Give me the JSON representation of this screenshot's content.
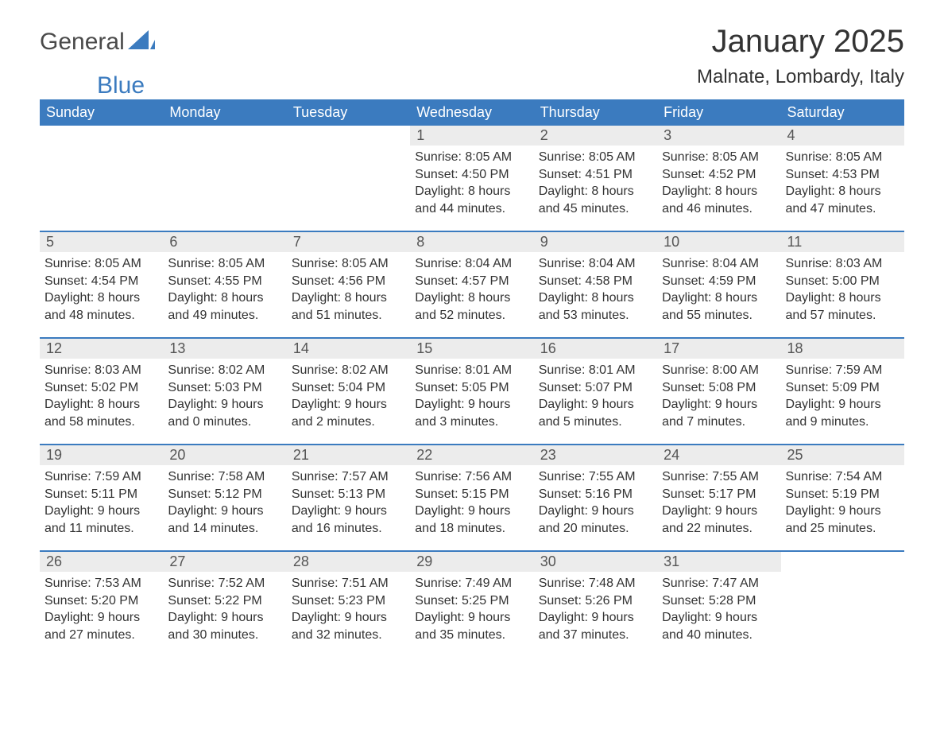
{
  "logo": {
    "text1": "General",
    "text2": "Blue"
  },
  "title": "January 2025",
  "subtitle": "Malnate, Lombardy, Italy",
  "colors": {
    "header_bg": "#3b7bbf",
    "header_text": "#ffffff",
    "daynum_bg": "#ececec",
    "daynum_text": "#555555",
    "border": "#3b7bbf",
    "body_text": "#333333",
    "logo_gray": "#4a4a4a",
    "logo_blue": "#3b7bbf"
  },
  "daysOfWeek": [
    "Sunday",
    "Monday",
    "Tuesday",
    "Wednesday",
    "Thursday",
    "Friday",
    "Saturday"
  ],
  "weeks": [
    [
      {
        "n": "",
        "sunrise": "",
        "sunset": "",
        "day1": "",
        "day2": ""
      },
      {
        "n": "",
        "sunrise": "",
        "sunset": "",
        "day1": "",
        "day2": ""
      },
      {
        "n": "",
        "sunrise": "",
        "sunset": "",
        "day1": "",
        "day2": ""
      },
      {
        "n": "1",
        "sunrise": "Sunrise: 8:05 AM",
        "sunset": "Sunset: 4:50 PM",
        "day1": "Daylight: 8 hours",
        "day2": "and 44 minutes."
      },
      {
        "n": "2",
        "sunrise": "Sunrise: 8:05 AM",
        "sunset": "Sunset: 4:51 PM",
        "day1": "Daylight: 8 hours",
        "day2": "and 45 minutes."
      },
      {
        "n": "3",
        "sunrise": "Sunrise: 8:05 AM",
        "sunset": "Sunset: 4:52 PM",
        "day1": "Daylight: 8 hours",
        "day2": "and 46 minutes."
      },
      {
        "n": "4",
        "sunrise": "Sunrise: 8:05 AM",
        "sunset": "Sunset: 4:53 PM",
        "day1": "Daylight: 8 hours",
        "day2": "and 47 minutes."
      }
    ],
    [
      {
        "n": "5",
        "sunrise": "Sunrise: 8:05 AM",
        "sunset": "Sunset: 4:54 PM",
        "day1": "Daylight: 8 hours",
        "day2": "and 48 minutes."
      },
      {
        "n": "6",
        "sunrise": "Sunrise: 8:05 AM",
        "sunset": "Sunset: 4:55 PM",
        "day1": "Daylight: 8 hours",
        "day2": "and 49 minutes."
      },
      {
        "n": "7",
        "sunrise": "Sunrise: 8:05 AM",
        "sunset": "Sunset: 4:56 PM",
        "day1": "Daylight: 8 hours",
        "day2": "and 51 minutes."
      },
      {
        "n": "8",
        "sunrise": "Sunrise: 8:04 AM",
        "sunset": "Sunset: 4:57 PM",
        "day1": "Daylight: 8 hours",
        "day2": "and 52 minutes."
      },
      {
        "n": "9",
        "sunrise": "Sunrise: 8:04 AM",
        "sunset": "Sunset: 4:58 PM",
        "day1": "Daylight: 8 hours",
        "day2": "and 53 minutes."
      },
      {
        "n": "10",
        "sunrise": "Sunrise: 8:04 AM",
        "sunset": "Sunset: 4:59 PM",
        "day1": "Daylight: 8 hours",
        "day2": "and 55 minutes."
      },
      {
        "n": "11",
        "sunrise": "Sunrise: 8:03 AM",
        "sunset": "Sunset: 5:00 PM",
        "day1": "Daylight: 8 hours",
        "day2": "and 57 minutes."
      }
    ],
    [
      {
        "n": "12",
        "sunrise": "Sunrise: 8:03 AM",
        "sunset": "Sunset: 5:02 PM",
        "day1": "Daylight: 8 hours",
        "day2": "and 58 minutes."
      },
      {
        "n": "13",
        "sunrise": "Sunrise: 8:02 AM",
        "sunset": "Sunset: 5:03 PM",
        "day1": "Daylight: 9 hours",
        "day2": "and 0 minutes."
      },
      {
        "n": "14",
        "sunrise": "Sunrise: 8:02 AM",
        "sunset": "Sunset: 5:04 PM",
        "day1": "Daylight: 9 hours",
        "day2": "and 2 minutes."
      },
      {
        "n": "15",
        "sunrise": "Sunrise: 8:01 AM",
        "sunset": "Sunset: 5:05 PM",
        "day1": "Daylight: 9 hours",
        "day2": "and 3 minutes."
      },
      {
        "n": "16",
        "sunrise": "Sunrise: 8:01 AM",
        "sunset": "Sunset: 5:07 PM",
        "day1": "Daylight: 9 hours",
        "day2": "and 5 minutes."
      },
      {
        "n": "17",
        "sunrise": "Sunrise: 8:00 AM",
        "sunset": "Sunset: 5:08 PM",
        "day1": "Daylight: 9 hours",
        "day2": "and 7 minutes."
      },
      {
        "n": "18",
        "sunrise": "Sunrise: 7:59 AM",
        "sunset": "Sunset: 5:09 PM",
        "day1": "Daylight: 9 hours",
        "day2": "and 9 minutes."
      }
    ],
    [
      {
        "n": "19",
        "sunrise": "Sunrise: 7:59 AM",
        "sunset": "Sunset: 5:11 PM",
        "day1": "Daylight: 9 hours",
        "day2": "and 11 minutes."
      },
      {
        "n": "20",
        "sunrise": "Sunrise: 7:58 AM",
        "sunset": "Sunset: 5:12 PM",
        "day1": "Daylight: 9 hours",
        "day2": "and 14 minutes."
      },
      {
        "n": "21",
        "sunrise": "Sunrise: 7:57 AM",
        "sunset": "Sunset: 5:13 PM",
        "day1": "Daylight: 9 hours",
        "day2": "and 16 minutes."
      },
      {
        "n": "22",
        "sunrise": "Sunrise: 7:56 AM",
        "sunset": "Sunset: 5:15 PM",
        "day1": "Daylight: 9 hours",
        "day2": "and 18 minutes."
      },
      {
        "n": "23",
        "sunrise": "Sunrise: 7:55 AM",
        "sunset": "Sunset: 5:16 PM",
        "day1": "Daylight: 9 hours",
        "day2": "and 20 minutes."
      },
      {
        "n": "24",
        "sunrise": "Sunrise: 7:55 AM",
        "sunset": "Sunset: 5:17 PM",
        "day1": "Daylight: 9 hours",
        "day2": "and 22 minutes."
      },
      {
        "n": "25",
        "sunrise": "Sunrise: 7:54 AM",
        "sunset": "Sunset: 5:19 PM",
        "day1": "Daylight: 9 hours",
        "day2": "and 25 minutes."
      }
    ],
    [
      {
        "n": "26",
        "sunrise": "Sunrise: 7:53 AM",
        "sunset": "Sunset: 5:20 PM",
        "day1": "Daylight: 9 hours",
        "day2": "and 27 minutes."
      },
      {
        "n": "27",
        "sunrise": "Sunrise: 7:52 AM",
        "sunset": "Sunset: 5:22 PM",
        "day1": "Daylight: 9 hours",
        "day2": "and 30 minutes."
      },
      {
        "n": "28",
        "sunrise": "Sunrise: 7:51 AM",
        "sunset": "Sunset: 5:23 PM",
        "day1": "Daylight: 9 hours",
        "day2": "and 32 minutes."
      },
      {
        "n": "29",
        "sunrise": "Sunrise: 7:49 AM",
        "sunset": "Sunset: 5:25 PM",
        "day1": "Daylight: 9 hours",
        "day2": "and 35 minutes."
      },
      {
        "n": "30",
        "sunrise": "Sunrise: 7:48 AM",
        "sunset": "Sunset: 5:26 PM",
        "day1": "Daylight: 9 hours",
        "day2": "and 37 minutes."
      },
      {
        "n": "31",
        "sunrise": "Sunrise: 7:47 AM",
        "sunset": "Sunset: 5:28 PM",
        "day1": "Daylight: 9 hours",
        "day2": "and 40 minutes."
      },
      {
        "n": "",
        "sunrise": "",
        "sunset": "",
        "day1": "",
        "day2": ""
      }
    ]
  ]
}
